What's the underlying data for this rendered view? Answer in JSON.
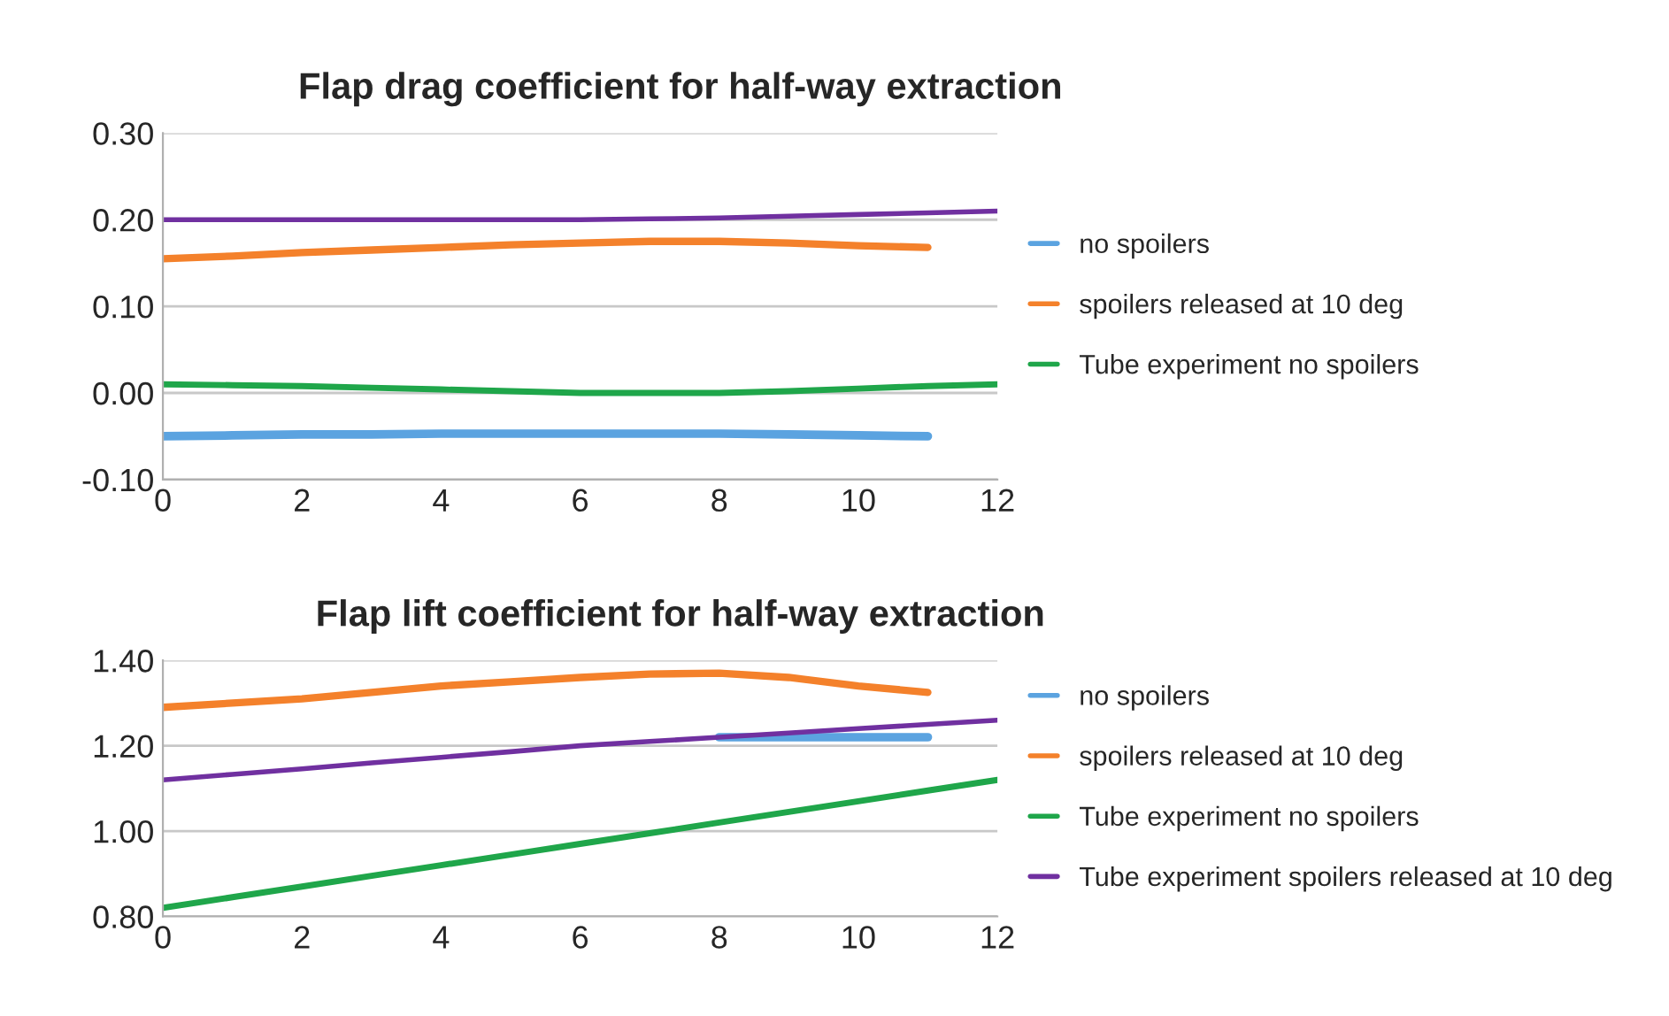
{
  "chart_data": [
    {
      "type": "line",
      "title": "Flap drag coefficient for half-way extraction",
      "xlim": [
        0,
        12
      ],
      "xticks": [
        0,
        2,
        4,
        6,
        8,
        10,
        12
      ],
      "ylim": [
        -0.1,
        0.3
      ],
      "yticks": [
        {
          "value": -0.1,
          "label": "-0.10"
        },
        {
          "value": 0,
          "label": "0.00"
        },
        {
          "value": 0.1,
          "label": "0.10"
        },
        {
          "value": 0.2,
          "label": "0.20"
        },
        {
          "value": 0.3,
          "label": "0.30"
        }
      ],
      "grid": "y",
      "legend": "right",
      "marker": "none",
      "line_style": "solid",
      "series": [
        {
          "name": "no spoilers",
          "color": "#5ba3e0",
          "x": [
            0,
            1,
            2,
            3,
            4,
            5,
            6,
            7,
            8,
            9,
            10,
            11
          ],
          "values": [
            -0.05,
            -0.049,
            -0.048,
            -0.048,
            -0.047,
            -0.047,
            -0.047,
            -0.047,
            -0.047,
            -0.048,
            -0.049,
            -0.05
          ]
        },
        {
          "name": "spoilers released at 10 deg",
          "color": "#f4812b",
          "x": [
            0,
            1,
            2,
            3,
            4,
            5,
            6,
            7,
            8,
            9,
            10,
            11
          ],
          "values": [
            0.155,
            0.158,
            0.162,
            0.165,
            0.168,
            0.171,
            0.173,
            0.175,
            0.175,
            0.173,
            0.17,
            0.168
          ]
        },
        {
          "name": "Tube experiment no spoilers",
          "color": "#1fa64a",
          "x": [
            0,
            1,
            2,
            3,
            4,
            5,
            6,
            7,
            8,
            9,
            10,
            11,
            12
          ],
          "values": [
            0.01,
            0.009,
            0.008,
            0.006,
            0.004,
            0.002,
            0.0,
            0.0,
            0.0,
            0.002,
            0.005,
            0.008,
            0.01
          ]
        },
        {
          "color": "#7030a0",
          "x": [
            0,
            1,
            2,
            3,
            4,
            5,
            6,
            7,
            8,
            9,
            10,
            11,
            12
          ],
          "values": [
            0.2,
            0.2,
            0.2,
            0.2,
            0.2,
            0.2,
            0.2,
            0.201,
            0.202,
            0.204,
            0.206,
            0.208,
            0.21
          ]
        }
      ]
    },
    {
      "type": "line",
      "title": "Flap lift coefficient for half-way extraction",
      "xlim": [
        0,
        12
      ],
      "xticks": [
        0,
        2,
        4,
        6,
        8,
        10,
        12
      ],
      "ylim": [
        0.8,
        1.4
      ],
      "yticks": [
        {
          "value": 0.8,
          "label": "0.80"
        },
        {
          "value": 1.0,
          "label": "1.00"
        },
        {
          "value": 1.2,
          "label": "1.20"
        },
        {
          "value": 1.4,
          "label": "1.40"
        }
      ],
      "grid": "y",
      "legend": "right",
      "marker": "none",
      "line_style": "solid",
      "series": [
        {
          "name": "no spoilers",
          "color": "#5ba3e0",
          "x": [
            8,
            9,
            10,
            11
          ],
          "values": [
            1.22,
            1.22,
            1.22,
            1.22
          ]
        },
        {
          "name": "spoilers released at 10 deg",
          "color": "#f4812b",
          "x": [
            0,
            1,
            2,
            3,
            4,
            5,
            6,
            7,
            8,
            9,
            10,
            11
          ],
          "values": [
            1.29,
            1.3,
            1.31,
            1.325,
            1.34,
            1.35,
            1.36,
            1.368,
            1.37,
            1.36,
            1.34,
            1.325
          ]
        },
        {
          "name": "Tube experiment no spoilers",
          "color": "#1fa64a",
          "x": [
            0,
            1,
            2,
            3,
            4,
            5,
            6,
            7,
            8,
            9,
            10,
            11,
            12
          ],
          "values": [
            0.82,
            0.845,
            0.87,
            0.895,
            0.92,
            0.945,
            0.97,
            0.995,
            1.02,
            1.045,
            1.07,
            1.095,
            1.12
          ]
        },
        {
          "name": "Tube experiment spoilers released at 10 deg",
          "color": "#7030a0",
          "x": [
            0,
            1,
            2,
            3,
            4,
            5,
            6,
            7,
            8,
            9,
            10,
            11,
            12
          ],
          "values": [
            1.12,
            1.133,
            1.146,
            1.16,
            1.173,
            1.186,
            1.2,
            1.21,
            1.22,
            1.23,
            1.24,
            1.25,
            1.26
          ]
        }
      ]
    }
  ]
}
